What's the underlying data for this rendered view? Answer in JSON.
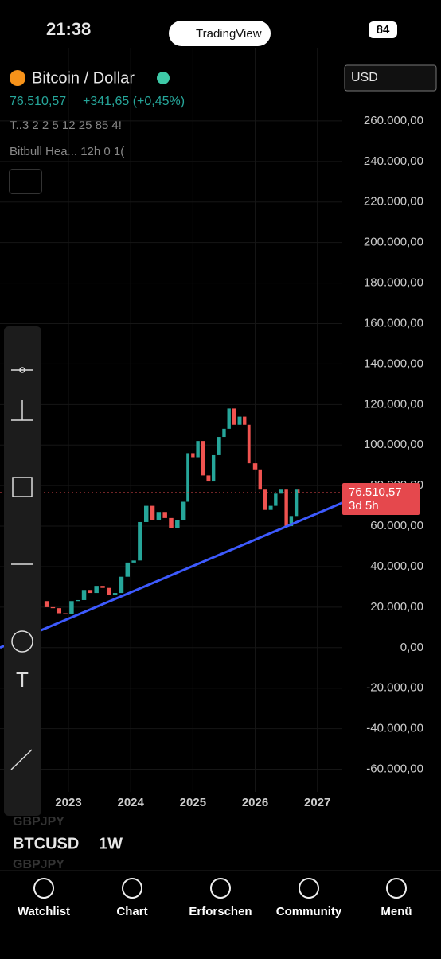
{
  "status_bar": {
    "time": "21:38",
    "app": "TradingView",
    "battery": "84"
  },
  "header": {
    "symbol_name": "Bitcoin / Dollar",
    "price": "76.510,57",
    "change": "+341,65 (+0,45%)",
    "indicator_1": "T..3 2 2 5 12 25 85 4!",
    "indicator_2": "Bitbull Hea...  12h 0 1(",
    "currency": "USD"
  },
  "chart_data": {
    "type": "candlestick",
    "x": [
      2022.55,
      2022.65,
      2022.75,
      2022.85,
      2022.95,
      2023.05,
      2023.15,
      2023.25,
      2023.35,
      2023.45,
      2023.55,
      2023.65,
      2023.75,
      2023.85,
      2023.95,
      2024.05,
      2024.15,
      2024.25,
      2024.35,
      2024.45,
      2024.55,
      2024.65,
      2024.75,
      2024.85,
      2024.92,
      2025.0,
      2025.08,
      2025.16,
      2025.25,
      2025.33,
      2025.42,
      2025.5,
      2025.58,
      2025.66,
      2025.75,
      2025.83,
      2025.9,
      2026.0,
      2026.08,
      2026.16,
      2026.25,
      2026.33,
      2026.42,
      2026.5,
      2026.58,
      2026.66,
      2026.7
    ],
    "values": [
      23000,
      20000,
      19500,
      17000,
      16500,
      23000,
      23500,
      28500,
      27000,
      30500,
      29500,
      26000,
      27000,
      35000,
      42000,
      43000,
      62000,
      70000,
      63000,
      67000,
      64000,
      59000,
      63000,
      72000,
      96000,
      94000,
      102000,
      85000,
      82000,
      95000,
      104000,
      108000,
      118000,
      110000,
      114000,
      110000,
      91000,
      88000,
      78000,
      68000,
      70000,
      76000,
      78000,
      60000,
      65000,
      78000,
      76510.57
    ],
    "up_color": "#26a69a",
    "down_color": "#ef5350",
    "xlim": [
      2021.9,
      2027.4
    ],
    "xticks": [
      2023,
      2024,
      2025,
      2026,
      2027
    ],
    "ylim": [
      -70000,
      280000
    ],
    "yticks": [
      {
        "value": -60000,
        "label": "-60.000,00"
      },
      {
        "value": -40000,
        "label": "-40.000,00"
      },
      {
        "value": -20000,
        "label": "-20.000,00"
      },
      {
        "value": 0,
        "label": "0,00"
      },
      {
        "value": 20000,
        "label": "20.000,00"
      },
      {
        "value": 40000,
        "label": "40.000,00"
      },
      {
        "value": 60000,
        "label": "60.000,00"
      },
      {
        "value": 80000,
        "label": "80.000,00"
      },
      {
        "value": 100000,
        "label": "100.000,00"
      },
      {
        "value": 120000,
        "label": "120.000,00"
      },
      {
        "value": 140000,
        "label": "140.000,00"
      },
      {
        "value": 160000,
        "label": "160.000,00"
      },
      {
        "value": 180000,
        "label": "180.000,00"
      },
      {
        "value": 200000,
        "label": "200.000,00"
      },
      {
        "value": 220000,
        "label": "220.000,00"
      },
      {
        "value": 240000,
        "label": "240.000,00"
      },
      {
        "value": 260000,
        "label": "260.000,00"
      }
    ],
    "grid": true,
    "trendline": {
      "x": [
        2021.9,
        2027.4
      ],
      "values": [
        0,
        71500
      ],
      "color": "#3d5afe"
    },
    "last_price": {
      "value": 76510.57,
      "label": "76.510,57",
      "countdown": "3d 5h",
      "color": "#e5484d"
    }
  },
  "bottom_bar": {
    "symbol": "BTCUSD",
    "interval": "1W",
    "ghost_symbol": "GBPJPY"
  },
  "nav": [
    "Watchlist",
    "Chart",
    "Erforschen",
    "Community",
    "Menü"
  ]
}
